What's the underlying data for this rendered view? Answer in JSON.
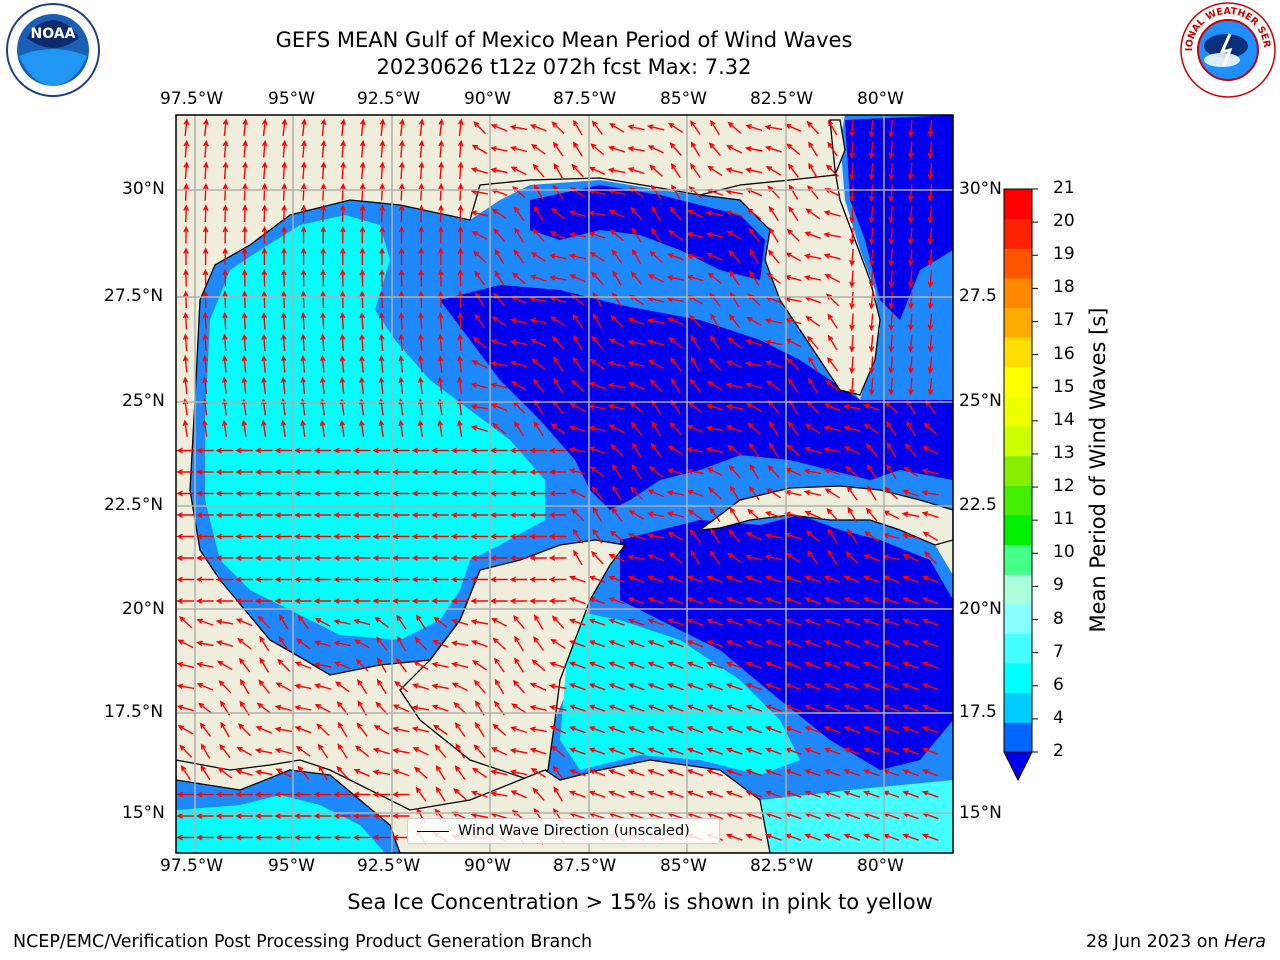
{
  "title_line1": "GEFS MEAN Gulf of Mexico Mean Period of Wind Waves",
  "title_line2": "20230626 t12z 072h fcst   Max: 7.32",
  "lon_ticks": [
    "97.5°W",
    "95°W",
    "92.5°W",
    "90°W",
    "87.5°W",
    "85°W",
    "82.5°W",
    "80°W"
  ],
  "lat_ticks_left": [
    "30°N",
    "27.5°N",
    "25°N",
    "22.5°N",
    "20°N",
    "17.5°N",
    "15°N"
  ],
  "lat_ticks_right": [
    "30°N",
    "27.5",
    "25°N",
    "22.5",
    "20°N",
    "17.5",
    "15°N"
  ],
  "legend_label": "Wind Wave Direction (unscaled)",
  "colorbar": {
    "label": "Mean Period of Wind Waves [s]",
    "ticks": [
      "2",
      "4",
      "6",
      "7",
      "8",
      "9",
      "10",
      "11",
      "12",
      "13",
      "14",
      "15",
      "16",
      "17",
      "18",
      "19",
      "20",
      "21"
    ],
    "colors": [
      "#0066ff",
      "#00ccff",
      "#00ffff",
      "#44ffff",
      "#88ffff",
      "#aaffdd",
      "#44ff88",
      "#00ee00",
      "#44ee00",
      "#88ee00",
      "#ccff00",
      "#eeff00",
      "#ffff00",
      "#ffdd00",
      "#ffaa00",
      "#ff8800",
      "#ff5500",
      "#ff2200",
      "#ff0000"
    ],
    "under_color": "#0000ee"
  },
  "map_colors": {
    "land": "#efeedd",
    "ocean_low": "#0000ee",
    "ocean_mid": "#1e88ff",
    "ocean_high": "#00ffff",
    "arrow": "#ff0000",
    "grid": "#b0b0b0"
  },
  "ice_note": "Sea Ice Concentration > 15% is shown in pink to yellow",
  "footer_left": "NCEP/EMC/Verification Post Processing Product Generation Branch",
  "footer_right_date": "28 Jun 2023 on ",
  "footer_right_host": "Hera",
  "logo_left_text": "NOAA",
  "logo_right_text": "NATIONAL WEATHER SERVICE"
}
